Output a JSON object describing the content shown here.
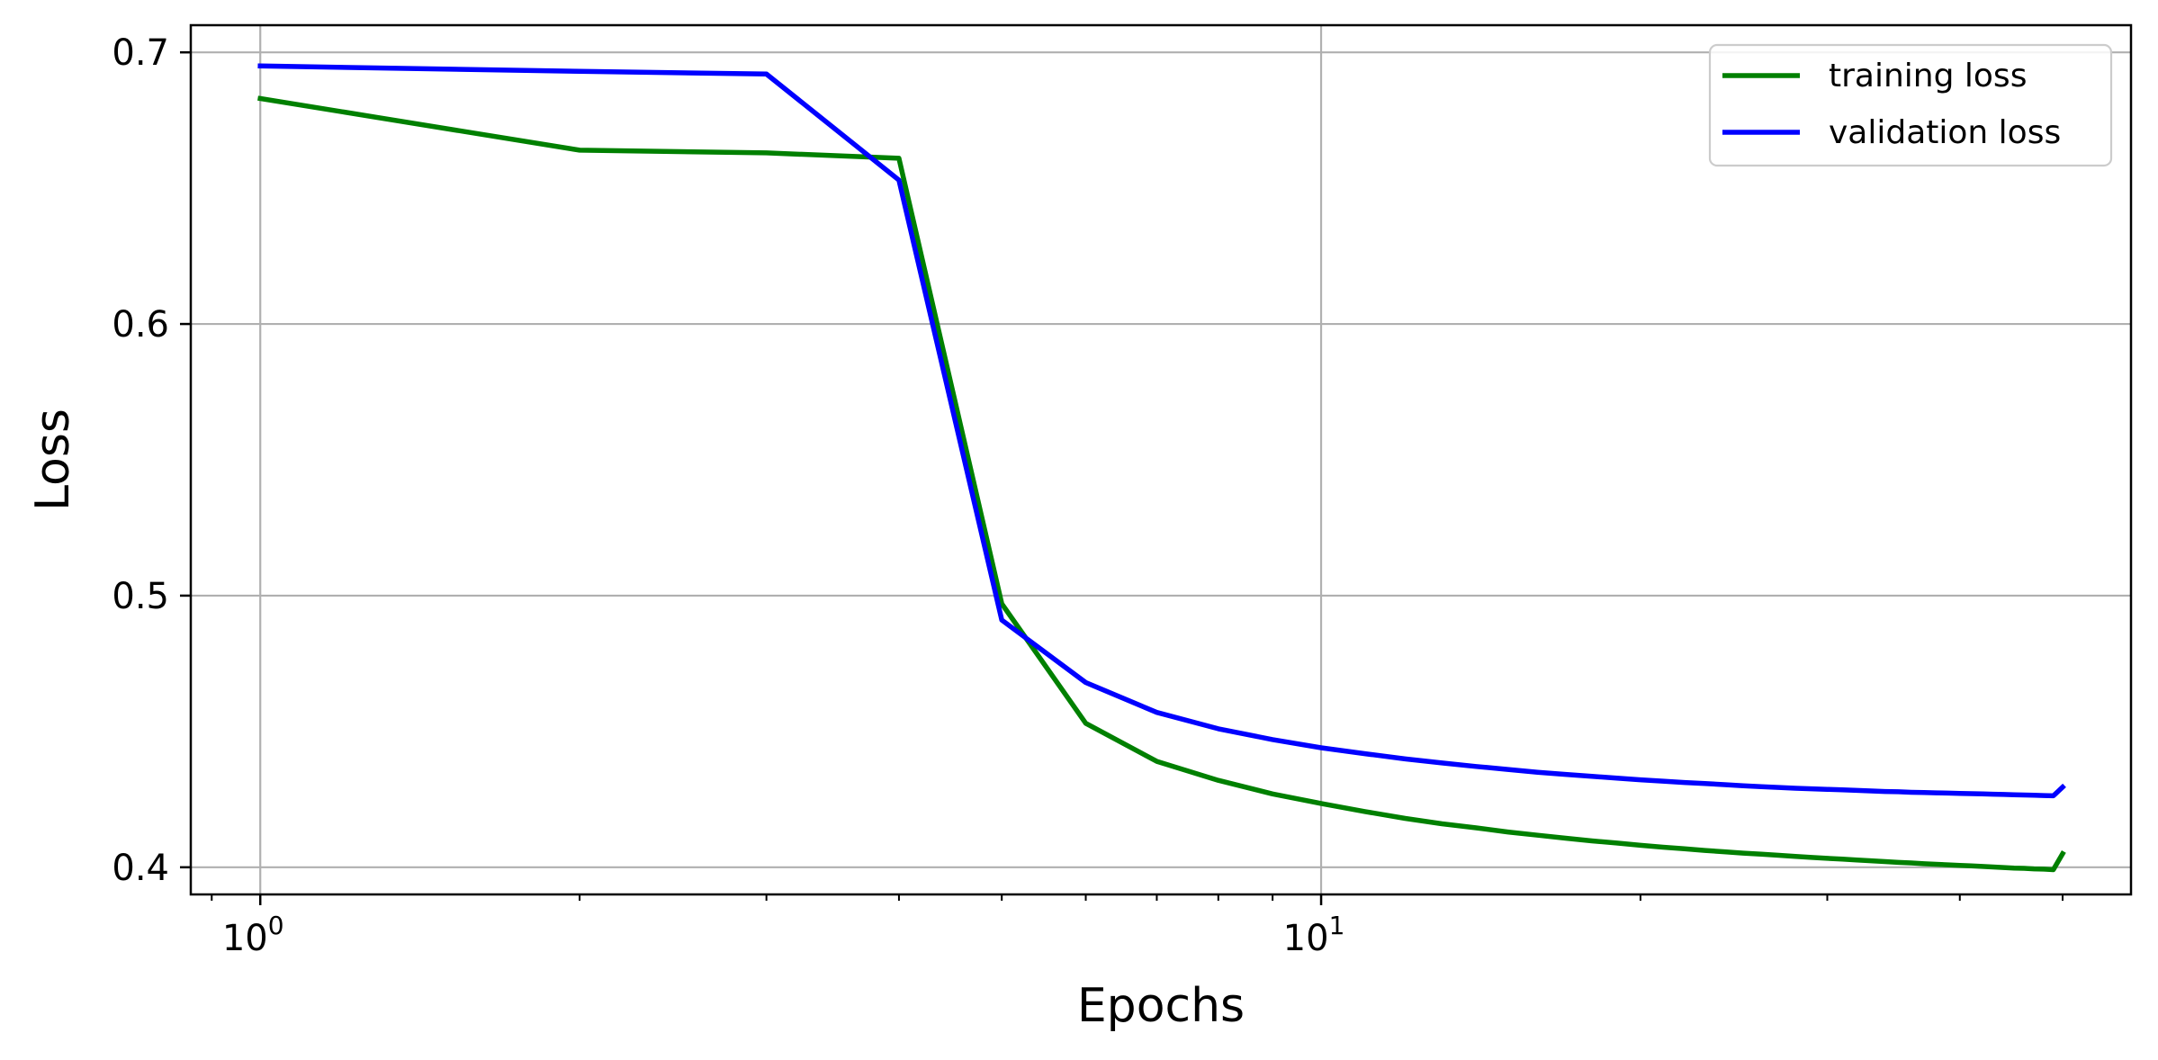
{
  "chart_data": {
    "type": "line",
    "xlabel": "Epochs",
    "ylabel": "Loss",
    "xscale": "log",
    "xlim": [
      0.86,
      58
    ],
    "ylim": [
      0.39,
      0.71
    ],
    "grid": true,
    "legend_position": "top-right",
    "x_ticks": [
      {
        "value": 1,
        "base": "10",
        "exp": "0"
      },
      {
        "value": 10,
        "base": "10",
        "exp": "1"
      }
    ],
    "y_ticks": [
      {
        "value": 0.4,
        "label": "0.4"
      },
      {
        "value": 0.5,
        "label": "0.5"
      },
      {
        "value": 0.6,
        "label": "0.6"
      },
      {
        "value": 0.7,
        "label": "0.7"
      }
    ],
    "series": [
      {
        "name": "training loss",
        "color": "#008000",
        "x": [
          1,
          2,
          3,
          4,
          5,
          6,
          7,
          8,
          9,
          10,
          11,
          12,
          13,
          14,
          15,
          16,
          17,
          18,
          19,
          20,
          21,
          22,
          23,
          24,
          25,
          26,
          27,
          28,
          29,
          30,
          31,
          32,
          33,
          34,
          35,
          36,
          37,
          38,
          39,
          40,
          41,
          42,
          43,
          44,
          45,
          46,
          47,
          48,
          49,
          50
        ],
        "y": [
          0.683,
          0.664,
          0.663,
          0.661,
          0.497,
          0.453,
          0.439,
          0.432,
          0.427,
          0.4235,
          0.4205,
          0.418,
          0.416,
          0.4145,
          0.413,
          0.4118,
          0.4107,
          0.4097,
          0.4089,
          0.4081,
          0.4074,
          0.4068,
          0.4062,
          0.4057,
          0.4052,
          0.4048,
          0.4044,
          0.404,
          0.4036,
          0.4033,
          0.403,
          0.4027,
          0.4024,
          0.4021,
          0.4018,
          0.4016,
          0.4013,
          0.4011,
          0.4009,
          0.4007,
          0.4005,
          0.4003,
          0.4001,
          0.3999,
          0.3997,
          0.3996,
          0.3994,
          0.3993,
          0.3991,
          0.405
        ]
      },
      {
        "name": "validation loss",
        "color": "#0000ff",
        "x": [
          1,
          2,
          3,
          4,
          5,
          6,
          7,
          8,
          9,
          10,
          11,
          12,
          13,
          14,
          15,
          16,
          17,
          18,
          19,
          20,
          21,
          22,
          23,
          24,
          25,
          26,
          27,
          28,
          29,
          30,
          31,
          32,
          33,
          34,
          35,
          36,
          37,
          38,
          39,
          40,
          41,
          42,
          43,
          44,
          45,
          46,
          47,
          48,
          49,
          50
        ],
        "y": [
          0.695,
          0.693,
          0.692,
          0.653,
          0.491,
          0.468,
          0.457,
          0.451,
          0.447,
          0.444,
          0.4418,
          0.4399,
          0.4384,
          0.4371,
          0.436,
          0.435,
          0.4342,
          0.4335,
          0.4328,
          0.4322,
          0.4317,
          0.4312,
          0.4308,
          0.4304,
          0.43,
          0.4297,
          0.4294,
          0.4291,
          0.4289,
          0.4287,
          0.4285,
          0.4283,
          0.4281,
          0.4279,
          0.4278,
          0.4276,
          0.4275,
          0.4274,
          0.4273,
          0.4272,
          0.4271,
          0.427,
          0.4269,
          0.4268,
          0.4267,
          0.4266,
          0.4265,
          0.4264,
          0.4263,
          0.4295
        ]
      }
    ]
  }
}
